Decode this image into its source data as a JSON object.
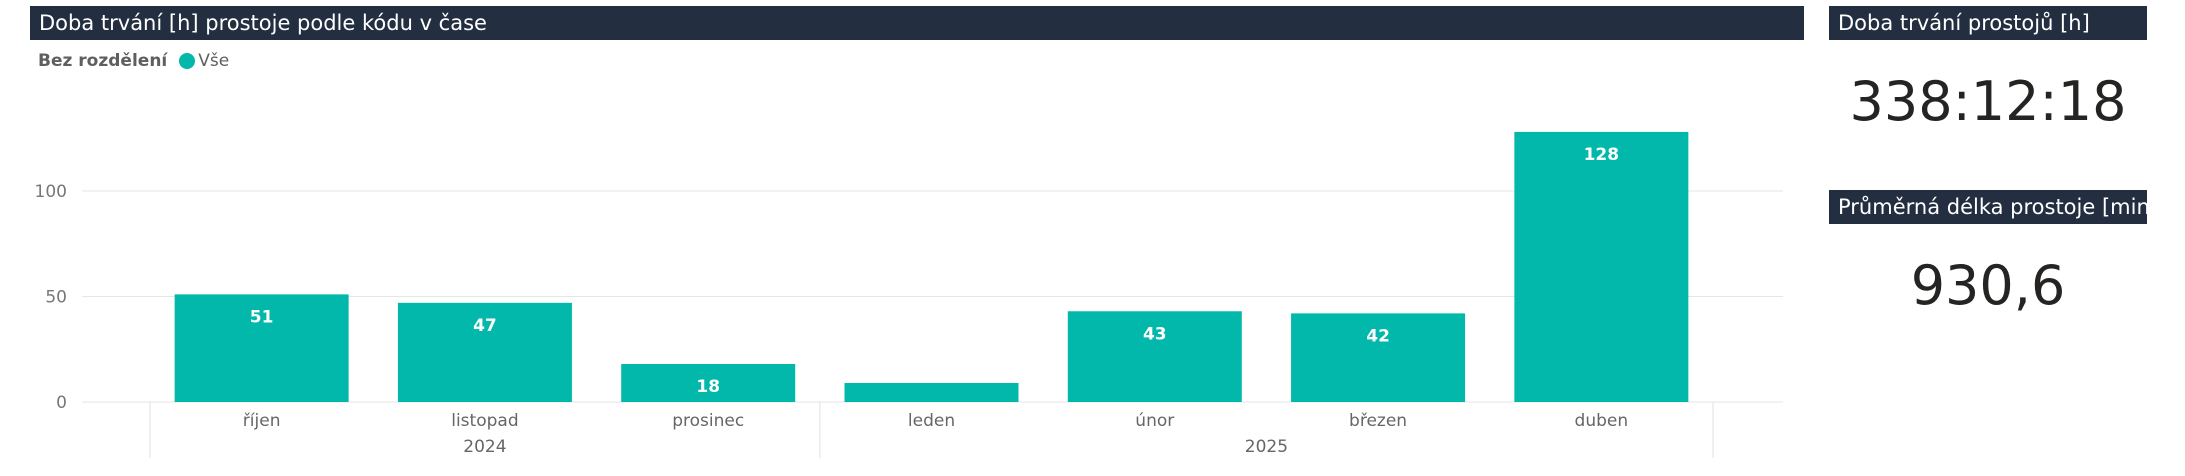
{
  "chart_title": "Doba trvání [h] prostoje podle kódu v čase",
  "legend": {
    "title": "Bez rozdělení",
    "item": "Vše",
    "color": "#01b8aa"
  },
  "card1": {
    "title": "Doba trvání prostojů [h]",
    "value": "338:12:18"
  },
  "card2": {
    "title": "Průměrná délka prostoje [min]",
    "value": "930,6"
  },
  "chart_data": {
    "type": "bar",
    "title": "Doba trvání [h] prostoje podle kódu v čase",
    "categories": [
      "říjen",
      "listopad",
      "prosinec",
      "leden",
      "únor",
      "březen",
      "duben"
    ],
    "year_groups": [
      {
        "label": "2024",
        "categories": [
          "říjen",
          "listopad",
          "prosinec"
        ]
      },
      {
        "label": "2025",
        "categories": [
          "leden",
          "únor",
          "březen",
          "duben"
        ]
      }
    ],
    "series": [
      {
        "name": "Vše",
        "values": [
          51,
          47,
          18,
          9,
          43,
          42,
          128
        ],
        "data_labels": [
          "51",
          "47",
          "18",
          "",
          "43",
          "42",
          "128"
        ]
      }
    ],
    "yticks": [
      0,
      50,
      100
    ],
    "ylim": [
      0,
      135
    ],
    "grid": true,
    "bar_color": "#01b8aa"
  }
}
